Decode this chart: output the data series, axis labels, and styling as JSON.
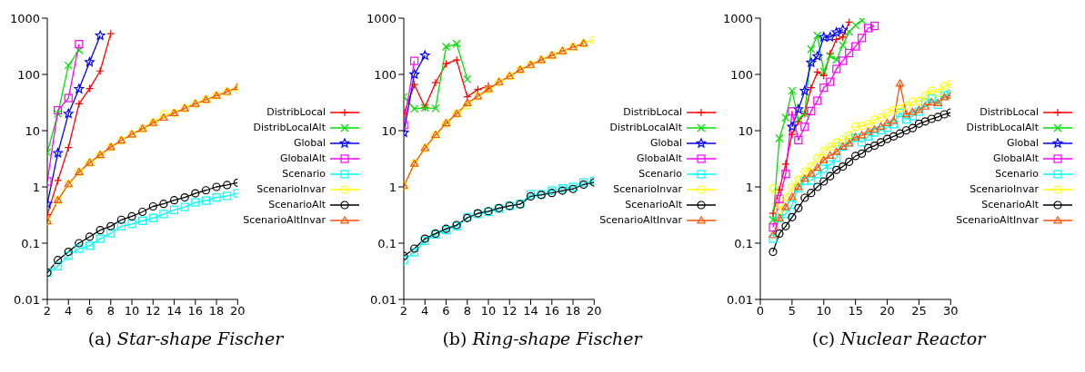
{
  "chart_data": [
    {
      "type": "line",
      "title": "(a) Star-shape Fischer",
      "log": "y",
      "legend": "right",
      "line_style": "solid",
      "xlim": [
        2,
        20
      ],
      "xticks": [
        2,
        4,
        6,
        8,
        10,
        12,
        14,
        16,
        18,
        20
      ],
      "ylim": [
        0.01,
        1000
      ],
      "yticks": [
        0.01,
        0.1,
        1,
        10,
        100,
        1000
      ],
      "x": [
        2,
        3,
        4,
        5,
        6,
        7,
        8,
        9,
        10,
        11,
        12,
        13,
        14,
        15,
        16,
        17,
        18,
        19,
        20
      ],
      "series": [
        {
          "name": "DistribLocal",
          "color": "#ff0000",
          "marker": "plus",
          "values": [
            0.32,
            1.3,
            5,
            30,
            56,
            115,
            530,
            null,
            null,
            null,
            null,
            null,
            null,
            null,
            null,
            null,
            null,
            null,
            null
          ]
        },
        {
          "name": "DistribLocalAlt",
          "color": "#00e000",
          "marker": "cross",
          "values": [
            4.1,
            20,
            144,
            270,
            null,
            null,
            null,
            null,
            null,
            null,
            null,
            null,
            null,
            null,
            null,
            null,
            null,
            null,
            null
          ]
        },
        {
          "name": "Global",
          "color": "#0000ff",
          "marker": "star",
          "values": [
            0.5,
            4,
            20,
            55,
            165,
            490,
            null,
            null,
            null,
            null,
            null,
            null,
            null,
            null,
            null,
            null,
            null,
            null,
            null
          ]
        },
        {
          "name": "GlobalAlt",
          "color": "#ff00ff",
          "marker": "square",
          "values": [
            1.25,
            23,
            38,
            345,
            null,
            null,
            null,
            null,
            null,
            null,
            null,
            null,
            null,
            null,
            null,
            null,
            null,
            null,
            null
          ]
        },
        {
          "name": "Scenario",
          "color": "#00ffff",
          "marker": "square",
          "values": [
            0.03,
            0.039,
            0.06,
            0.08,
            0.09,
            0.12,
            0.15,
            0.2,
            0.22,
            0.25,
            0.28,
            0.33,
            0.39,
            0.44,
            0.53,
            0.57,
            0.65,
            0.69,
            0.77
          ]
        },
        {
          "name": "ScenarioInvar",
          "color": "#ffff00",
          "marker": "circle",
          "values": [
            0.245,
            0.58,
            1.12,
            1.84,
            2.7,
            3.7,
            5.1,
            6.7,
            8.6,
            10.8,
            13.8,
            19.5,
            20.5,
            25,
            30,
            35.5,
            42,
            49,
            56
          ]
        },
        {
          "name": "ScenarioAlt",
          "color": "#000000",
          "marker": "circle",
          "values": [
            0.03,
            0.05,
            0.07,
            0.1,
            0.13,
            0.17,
            0.2,
            0.26,
            0.3,
            0.36,
            0.45,
            0.5,
            0.58,
            0.65,
            0.77,
            0.87,
            1.0,
            1.08,
            1.19
          ]
        },
        {
          "name": "ScenarioAltInvar",
          "color": "#ff5000",
          "marker": "triangle",
          "values": [
            0.245,
            0.58,
            1.12,
            1.84,
            2.7,
            3.7,
            5.1,
            6.7,
            8.6,
            10.8,
            13.8,
            17,
            20.5,
            25,
            30,
            35.5,
            42,
            49,
            60
          ]
        }
      ]
    },
    {
      "type": "line",
      "title": "(b) Ring-shape Fischer",
      "log": "y",
      "legend": "right",
      "line_style": "solid",
      "xlim": [
        2,
        20
      ],
      "xticks": [
        2,
        4,
        6,
        8,
        10,
        12,
        14,
        16,
        18,
        20
      ],
      "ylim": [
        0.01,
        1000
      ],
      "yticks": [
        0.01,
        0.1,
        1,
        10,
        100,
        1000
      ],
      "x": [
        2,
        3,
        4,
        5,
        6,
        7,
        8,
        9,
        10,
        11,
        12,
        13,
        14,
        15,
        16,
        17,
        18,
        19,
        20
      ],
      "series": [
        {
          "name": "DistribLocal",
          "color": "#ff0000",
          "marker": "plus",
          "values": [
            20,
            66,
            26,
            71,
            155,
            180,
            40,
            54,
            62,
            null,
            null,
            null,
            null,
            null,
            null,
            null,
            null,
            null,
            null
          ]
        },
        {
          "name": "DistribLocalAlt",
          "color": "#00e000",
          "marker": "cross",
          "values": [
            40,
            24.5,
            25.5,
            25,
            310,
            350,
            82,
            null,
            null,
            null,
            null,
            null,
            null,
            null,
            null,
            null,
            null,
            null,
            null
          ]
        },
        {
          "name": "Global",
          "color": "#0000ff",
          "marker": "star",
          "values": [
            9.2,
            100,
            217,
            null,
            null,
            null,
            null,
            null,
            null,
            null,
            null,
            null,
            null,
            null,
            null,
            null,
            null,
            null,
            null
          ]
        },
        {
          "name": "GlobalAlt",
          "color": "#ff00ff",
          "marker": "square",
          "values": [
            12.5,
            174,
            null,
            null,
            null,
            null,
            null,
            null,
            null,
            null,
            null,
            null,
            null,
            null,
            null,
            null,
            null,
            null,
            null
          ]
        },
        {
          "name": "Scenario",
          "color": "#00ffff",
          "marker": "square",
          "values": [
            0.05,
            0.069,
            0.11,
            0.143,
            0.17,
            0.2,
            0.29,
            0.33,
            0.36,
            0.41,
            0.46,
            0.5,
            0.74,
            0.74,
            0.86,
            0.94,
            1.0,
            1.2,
            1.28
          ]
        },
        {
          "name": "ScenarioInvar",
          "color": "#ffff00",
          "marker": "circle",
          "values": [
            1.04,
            2.6,
            4.9,
            8.4,
            13.5,
            20,
            28,
            41,
            53,
            73,
            93,
            121,
            148,
            180,
            217,
            260,
            305,
            355,
            410
          ]
        },
        {
          "name": "ScenarioAlt",
          "color": "#000000",
          "marker": "circle",
          "values": [
            0.059,
            0.08,
            0.12,
            0.148,
            0.18,
            0.21,
            0.28,
            0.34,
            0.37,
            0.42,
            0.46,
            0.49,
            0.68,
            0.72,
            0.78,
            0.86,
            0.92,
            1.1,
            1.2
          ]
        },
        {
          "name": "ScenarioAltInvar",
          "color": "#ff5000",
          "marker": "triangle",
          "values": [
            1.04,
            2.6,
            4.9,
            8.4,
            13.5,
            20,
            31,
            41,
            55,
            73,
            93,
            121,
            148,
            180,
            217,
            260,
            305,
            355,
            null
          ]
        }
      ]
    },
    {
      "type": "line",
      "title": "(c) Nuclear Reactor",
      "log": "y",
      "legend": "right",
      "line_style": "solid",
      "xlim": [
        0,
        30
      ],
      "xticks": [
        0,
        5,
        10,
        15,
        20,
        25,
        30
      ],
      "ylim": [
        0.01,
        1000
      ],
      "yticks": [
        0.01,
        0.1,
        1,
        10,
        100,
        1000
      ],
      "x": [
        2,
        3,
        4,
        5,
        6,
        7,
        8,
        9,
        10,
        11,
        12,
        13,
        14,
        15,
        16,
        17,
        18,
        19,
        20,
        21,
        22,
        23,
        24,
        25,
        26,
        27,
        28,
        29,
        30
      ],
      "series": [
        {
          "name": "DistribLocal",
          "color": "#ff0000",
          "marker": "plus",
          "values": [
            0.34,
            0.89,
            2.55,
            8.6,
            14.4,
            20,
            58,
            110,
            95,
            233,
            420,
            460,
            850,
            null,
            null,
            null,
            null,
            null,
            null,
            null,
            null,
            null,
            null,
            null,
            null,
            null,
            null,
            null,
            null
          ]
        },
        {
          "name": "DistribLocalAlt",
          "color": "#00e000",
          "marker": "cross",
          "values": [
            0.26,
            7.3,
            17,
            51,
            16,
            20,
            280,
            490,
            112,
            213,
            183,
            330,
            570,
            745,
            910,
            null,
            null,
            null,
            null,
            null,
            null,
            null,
            null,
            null,
            null,
            null,
            null,
            null,
            null
          ]
        },
        {
          "name": "Global",
          "color": "#0000ff",
          "marker": "star",
          "values": [
            null,
            null,
            null,
            11.7,
            24,
            51,
            162,
            210,
            460,
            460,
            560,
            620,
            null,
            null,
            null,
            null,
            null,
            null,
            null,
            null,
            null,
            null,
            null,
            null,
            null,
            null,
            null,
            null,
            null
          ]
        },
        {
          "name": "GlobalAlt",
          "color": "#ff00ff",
          "marker": "square",
          "values": [
            0.19,
            0.61,
            1.7,
            22,
            6.8,
            11.7,
            22.3,
            34,
            58,
            74,
            125,
            175,
            240,
            315,
            445,
            665,
            730,
            null,
            null,
            null,
            null,
            null,
            null,
            null,
            null,
            null,
            null,
            null,
            null
          ]
        },
        {
          "name": "Scenario",
          "color": "#00ffff",
          "marker": "square",
          "values": [
            0.12,
            0.28,
            0.33,
            0.48,
            0.95,
            1.28,
            1.3,
            1.7,
            2.1,
            2.5,
            3.3,
            5.2,
            6.2,
            7.5,
            6.2,
            7.9,
            9.3,
            10.2,
            11.3,
            13,
            20.7,
            15.8,
            18.1,
            21.8,
            31.8,
            37,
            29,
            42,
            44.6
          ]
        },
        {
          "name": "ScenarioInvar",
          "color": "#ffff00",
          "marker": "circle",
          "values": [
            0.93,
            0.38,
            0.64,
            0.99,
            1.34,
            1.86,
            2.3,
            3.2,
            4.3,
            5.2,
            6.2,
            6.9,
            8.3,
            11.8,
            12.2,
            13,
            15.7,
            17,
            21,
            23,
            24.8,
            27.7,
            32.9,
            33.7,
            42,
            51.5,
            46.8,
            62,
            68
          ]
        },
        {
          "name": "ScenarioAlt",
          "color": "#000000",
          "marker": "circle",
          "values": [
            0.07,
            0.148,
            0.2,
            0.29,
            0.42,
            0.64,
            0.78,
            1.0,
            1.25,
            1.55,
            2.0,
            2.3,
            2.8,
            3.55,
            3.9,
            4.9,
            5.4,
            6.2,
            7.1,
            7.9,
            8.9,
            10.1,
            11.1,
            13.3,
            14.6,
            16.2,
            17.5,
            19.5,
            21
          ]
        },
        {
          "name": "ScenarioAltInvar",
          "color": "#ff5000",
          "marker": "triangle",
          "values": [
            0.14,
            0.28,
            0.44,
            0.66,
            1.0,
            1.4,
            1.73,
            2.2,
            3.0,
            3.6,
            4.2,
            5.2,
            5.9,
            7.6,
            8.3,
            9.5,
            10.5,
            11.8,
            13.7,
            15,
            69,
            19.5,
            21.5,
            23.4,
            26.8,
            31.8,
            31,
            39.4,
            42
          ]
        }
      ]
    }
  ]
}
